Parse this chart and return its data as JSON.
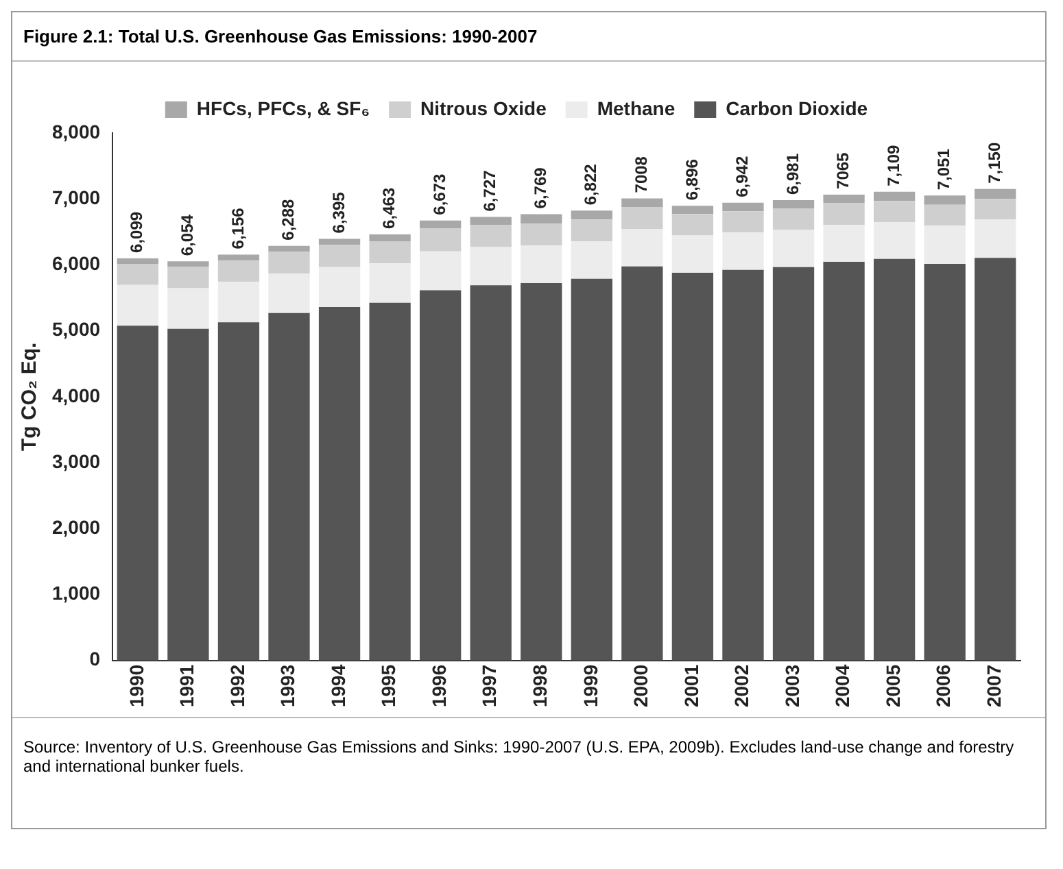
{
  "chart_data": {
    "type": "bar",
    "title": "Figure 2.1: Total U.S. Greenhouse Gas Emissions: 1990-2007",
    "ylabel": "Tg CO₂ Eq.",
    "stacked": true,
    "legend": "top",
    "grid": false,
    "categories": [
      "1990",
      "1991",
      "1992",
      "1993",
      "1994",
      "1995",
      "1996",
      "1997",
      "1998",
      "1999",
      "2000",
      "2001",
      "2002",
      "2003",
      "2004",
      "2005",
      "2006",
      "2007"
    ],
    "series": [
      {
        "name": "Carbon Dioxide",
        "color": "#555555",
        "values": [
          5077,
          5030,
          5130,
          5270,
          5360,
          5425,
          5615,
          5690,
          5725,
          5790,
          5975,
          5880,
          5925,
          5965,
          6045,
          6090,
          6015,
          6105
        ]
      },
      {
        "name": "Methane",
        "color": "#ececec",
        "values": [
          617,
          615,
          612,
          600,
          605,
          600,
          590,
          580,
          570,
          565,
          570,
          565,
          565,
          565,
          560,
          560,
          580,
          585
        ]
      },
      {
        "name": "Nitrous Oxide",
        "color": "#cfcfcf",
        "values": [
          315,
          324,
          322,
          328,
          335,
          333,
          350,
          332,
          334,
          332,
          328,
          326,
          322,
          326,
          330,
          319,
          316,
          310
        ]
      },
      {
        "name": "HFCs, PFCs, & SF₆",
        "color": "#a8a8a8",
        "values": [
          90,
          85,
          92,
          90,
          95,
          105,
          118,
          125,
          140,
          135,
          135,
          125,
          130,
          125,
          130,
          140,
          140,
          150
        ]
      }
    ],
    "totals": [
      "6,099",
      "6,054",
      "6,156",
      "6,288",
      "6,395",
      "6,463",
      "6,673",
      "6,727",
      "6,769",
      "6,822",
      "7008",
      "6,896",
      "6,942",
      "6,981",
      "7065",
      "7,109",
      "7,051",
      "7,150"
    ],
    "ylim": [
      0,
      8000
    ],
    "yticks": [
      {
        "value": 0,
        "label": "0"
      },
      {
        "value": 1000,
        "label": "1,000"
      },
      {
        "value": 2000,
        "label": "2,000"
      },
      {
        "value": 3000,
        "label": "3,000"
      },
      {
        "value": 4000,
        "label": "4,000"
      },
      {
        "value": 5000,
        "label": "5,000"
      },
      {
        "value": 6000,
        "label": "6,000"
      },
      {
        "value": 7000,
        "label": "7,000"
      },
      {
        "value": 8000,
        "label": "8,000"
      }
    ],
    "annotations": [
      "Source: Inventory of U.S. Greenhouse Gas Emissions and Sinks: 1990-2007 (U.S. EPA, 2009b). Excludes land-use change and forestry and international bunker fuels."
    ]
  }
}
